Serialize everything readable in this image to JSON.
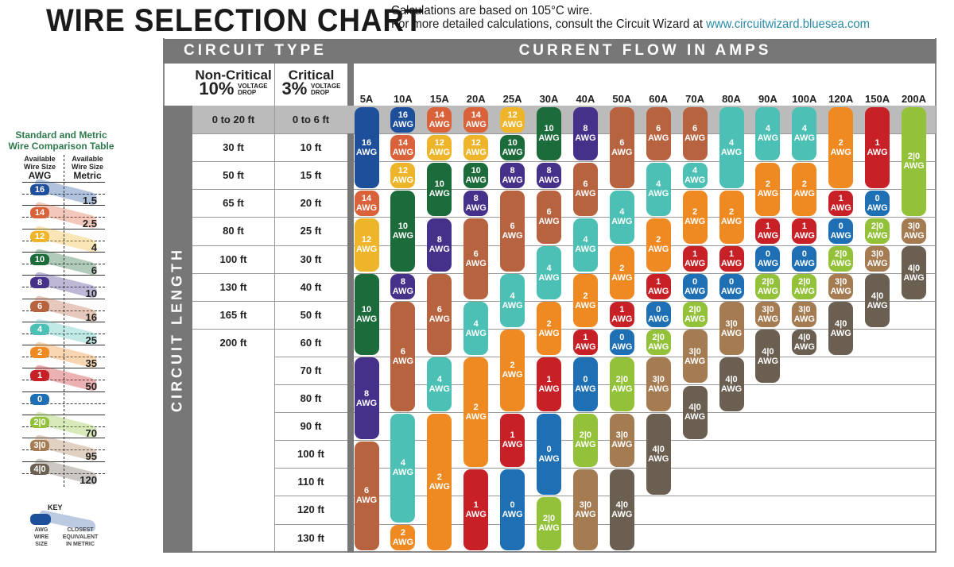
{
  "title": "WIRE SELECTION CHART",
  "subtitle_line1": "Calculations are based on 105°C wire.",
  "subtitle_line2": "For more detailed calculations, consult the Circuit Wizard at",
  "subtitle_link": "www.circuitwizard.bluesea.com",
  "circuit_type_label": "CIRCUIT TYPE",
  "current_flow_label": "CURRENT FLOW IN AMPS",
  "circuit_length_label": "CIRCUIT LENGTH",
  "non_critical": {
    "name": "Non-Critical",
    "pct": "10%",
    "drop1": "VOLTAGE",
    "drop2": "DROP"
  },
  "critical": {
    "name": "Critical",
    "pct": "3%",
    "drop1": "VOLTAGE",
    "drop2": "DROP"
  },
  "amps": [
    "5A",
    "10A",
    "15A",
    "20A",
    "25A",
    "30A",
    "40A",
    "50A",
    "60A",
    "70A",
    "80A",
    "90A",
    "100A",
    "120A",
    "150A",
    "200A"
  ],
  "rows": [
    {
      "noncritical": "0 to 20 ft",
      "critical": "0 to 6 ft"
    },
    {
      "noncritical": "30 ft",
      "critical": "10 ft"
    },
    {
      "noncritical": "50 ft",
      "critical": "15 ft"
    },
    {
      "noncritical": "65 ft",
      "critical": "20 ft"
    },
    {
      "noncritical": "80 ft",
      "critical": "25 ft"
    },
    {
      "noncritical": "100 ft",
      "critical": "30 ft"
    },
    {
      "noncritical": "130 ft",
      "critical": "40 ft"
    },
    {
      "noncritical": "165 ft",
      "critical": "50 ft"
    },
    {
      "noncritical": "200 ft",
      "critical": "60 ft"
    },
    {
      "noncritical": "",
      "critical": "70 ft"
    },
    {
      "noncritical": "",
      "critical": "80 ft"
    },
    {
      "noncritical": "",
      "critical": "90 ft"
    },
    {
      "noncritical": "",
      "critical": "100 ft"
    },
    {
      "noncritical": "",
      "critical": "110 ft"
    },
    {
      "noncritical": "",
      "critical": "120 ft"
    },
    {
      "noncritical": "",
      "critical": "130 ft"
    }
  ],
  "awg_suffix": "AWG",
  "colors": {
    "16": "#1d4f9a",
    "14": "#d9623a",
    "12": "#efb52a",
    "10": "#1c6b3a",
    "8": "#45308a",
    "6": "#b8633f",
    "4": "#4cc0b5",
    "2": "#ef8a22",
    "1": "#c72026",
    "0": "#1e6fb3",
    "2|0": "#93c23a",
    "3|0": "#a57b52",
    "4|0": "#6b5f52"
  },
  "grid": [
    [
      [
        "16",
        0,
        2
      ],
      [
        "14",
        3,
        3
      ],
      [
        "12",
        4,
        5
      ],
      [
        "10",
        6,
        8
      ],
      [
        "8",
        9,
        11
      ],
      [
        "6",
        12,
        15
      ]
    ],
    [
      [
        "16",
        0,
        0
      ],
      [
        "14",
        1,
        1
      ],
      [
        "12",
        2,
        2
      ],
      [
        "10",
        3,
        5
      ],
      [
        "8",
        6,
        6
      ],
      [
        "6",
        7,
        10
      ],
      [
        "4",
        11,
        14
      ],
      [
        "2",
        15,
        15
      ]
    ],
    [
      [
        "14",
        0,
        0
      ],
      [
        "12",
        1,
        1
      ],
      [
        "10",
        2,
        3
      ],
      [
        "8",
        4,
        5
      ],
      [
        "6",
        6,
        8
      ],
      [
        "4",
        9,
        10
      ],
      [
        "2",
        11,
        15
      ]
    ],
    [
      [
        "14",
        0,
        0
      ],
      [
        "12",
        1,
        1
      ],
      [
        "10",
        2,
        2
      ],
      [
        "8",
        3,
        3
      ],
      [
        "6",
        4,
        6
      ],
      [
        "4",
        7,
        8
      ],
      [
        "2",
        9,
        12
      ],
      [
        "1",
        13,
        15
      ]
    ],
    [
      [
        "12",
        0,
        0
      ],
      [
        "10",
        1,
        1
      ],
      [
        "8",
        2,
        2
      ],
      [
        "6",
        3,
        5
      ],
      [
        "4",
        6,
        7
      ],
      [
        "2",
        8,
        10
      ],
      [
        "1",
        11,
        12
      ],
      [
        "0",
        13,
        15
      ]
    ],
    [
      [
        "10",
        0,
        1
      ],
      [
        "8",
        2,
        2
      ],
      [
        "6",
        3,
        4
      ],
      [
        "4",
        5,
        6
      ],
      [
        "2",
        7,
        8
      ],
      [
        "1",
        9,
        10
      ],
      [
        "0",
        11,
        13
      ],
      [
        "2|0",
        14,
        15
      ]
    ],
    [
      [
        "8",
        0,
        1
      ],
      [
        "6",
        2,
        3
      ],
      [
        "4",
        4,
        5
      ],
      [
        "2",
        6,
        7
      ],
      [
        "1",
        8,
        8
      ],
      [
        "0",
        9,
        10
      ],
      [
        "2|0",
        11,
        12
      ],
      [
        "3|0",
        13,
        15
      ]
    ],
    [
      [
        "6",
        0,
        2
      ],
      [
        "4",
        3,
        4
      ],
      [
        "2",
        5,
        6
      ],
      [
        "1",
        7,
        7
      ],
      [
        "0",
        8,
        8
      ],
      [
        "2|0",
        9,
        10
      ],
      [
        "3|0",
        11,
        12
      ],
      [
        "4|0",
        13,
        15
      ]
    ],
    [
      [
        "6",
        0,
        1
      ],
      [
        "4",
        2,
        3
      ],
      [
        "2",
        4,
        5
      ],
      [
        "1",
        6,
        6
      ],
      [
        "0",
        7,
        7
      ],
      [
        "2|0",
        8,
        8
      ],
      [
        "3|0",
        9,
        10
      ],
      [
        "4|0",
        11,
        13
      ]
    ],
    [
      [
        "6",
        0,
        1
      ],
      [
        "4",
        2,
        2
      ],
      [
        "2",
        3,
        4
      ],
      [
        "1",
        5,
        5
      ],
      [
        "0",
        6,
        6
      ],
      [
        "2|0",
        7,
        7
      ],
      [
        "3|0",
        8,
        9
      ],
      [
        "4|0",
        10,
        11
      ]
    ],
    [
      [
        "4",
        0,
        2
      ],
      [
        "2",
        3,
        4
      ],
      [
        "1",
        5,
        5
      ],
      [
        "0",
        6,
        6
      ],
      [
        "3|0",
        7,
        8
      ],
      [
        "4|0",
        9,
        10
      ]
    ],
    [
      [
        "4",
        0,
        1
      ],
      [
        "2",
        2,
        3
      ],
      [
        "1",
        4,
        4
      ],
      [
        "0",
        5,
        5
      ],
      [
        "2|0",
        6,
        6
      ],
      [
        "3|0",
        7,
        7
      ],
      [
        "4|0",
        8,
        9
      ]
    ],
    [
      [
        "4",
        0,
        1
      ],
      [
        "2",
        2,
        3
      ],
      [
        "1",
        4,
        4
      ],
      [
        "0",
        5,
        5
      ],
      [
        "2|0",
        6,
        6
      ],
      [
        "3|0",
        7,
        7
      ],
      [
        "4|0",
        8,
        8
      ]
    ],
    [
      [
        "2",
        0,
        2
      ],
      [
        "1",
        3,
        3
      ],
      [
        "0",
        4,
        4
      ],
      [
        "2|0",
        5,
        5
      ],
      [
        "3|0",
        6,
        6
      ],
      [
        "4|0",
        7,
        8
      ]
    ],
    [
      [
        "1",
        0,
        2
      ],
      [
        "0",
        3,
        3
      ],
      [
        "2|0",
        4,
        4
      ],
      [
        "3|0",
        5,
        5
      ],
      [
        "4|0",
        6,
        7
      ]
    ],
    [
      [
        "2|0",
        0,
        3
      ],
      [
        "3|0",
        4,
        4
      ],
      [
        "4|0",
        5,
        6
      ]
    ]
  ],
  "legend": {
    "title1": "Standard and Metric",
    "title2": "Wire Comparison Table",
    "col_awg1": "Available",
    "col_awg2": "Wire Size",
    "col_awg3": "AWG",
    "col_met1": "Available",
    "col_met2": "Wire Size",
    "col_met3": "Metric",
    "entries": [
      [
        "16",
        "1.5"
      ],
      [
        "14",
        "2.5"
      ],
      [
        "12",
        "4"
      ],
      [
        "10",
        "6"
      ],
      [
        "8",
        "10"
      ],
      [
        "6",
        "16"
      ],
      [
        "4",
        "25"
      ],
      [
        "2",
        "35"
      ],
      [
        "1",
        "50"
      ],
      [
        "0",
        ""
      ],
      [
        "2|0",
        "70"
      ],
      [
        "3|0",
        "95"
      ],
      [
        "4|0",
        "120"
      ]
    ],
    "key_label": "KEY",
    "key_awg": "AWG WIRE SIZE",
    "key_metric": "CLOSEST EQUIVALENT IN METRIC"
  }
}
